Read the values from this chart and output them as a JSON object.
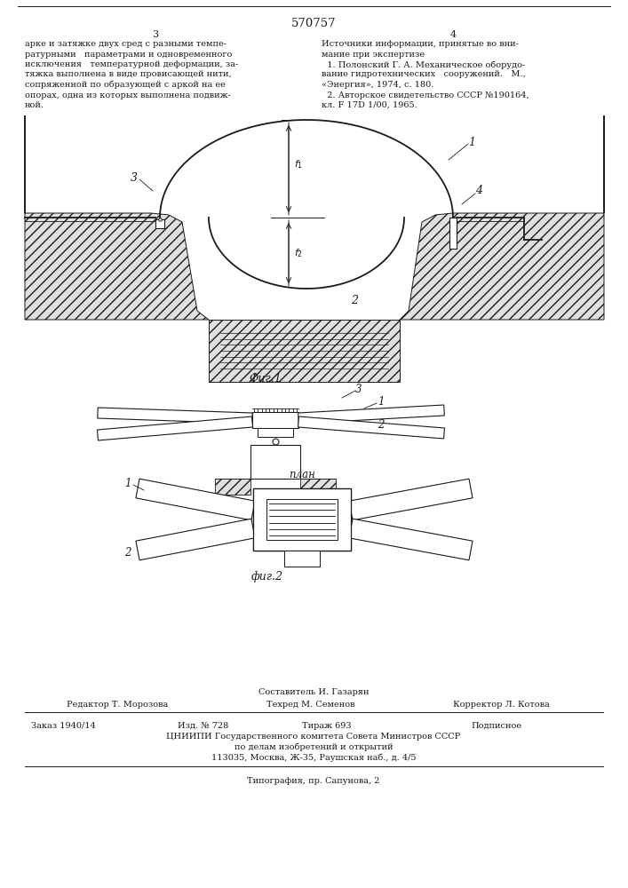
{
  "title": "570757",
  "page_numbers": [
    "3",
    "4"
  ],
  "fig1_label": "Фиг.1",
  "fig2_label": "фиг.2",
  "plan_label": "план",
  "bg_color": "#ffffff",
  "line_color": "#1a1a1a",
  "left_col_text": [
    "арке и затяжке двух сред с разными темпе-",
    "ратурными   параметрами и одновременного",
    "исключения   температурной деформации, за-",
    "тяжка выполнена в виде провисающей нити,",
    "сопряженной по образующей с аркой на ее",
    "опорах, одна из которых выполнена подвиж-",
    "ной."
  ],
  "right_col_text": [
    "Источники информации, принятые во вни-",
    "мание при экспертизе",
    "  1. Полонский Г. А. Механическое оборудо-",
    "вание гидротехнических   сооружений.   М.,",
    "«Энергия», 1974, с. 180.",
    "  2. Авторское свидетельство СССР №190164,",
    "кл. F 17D 1/00, 1965."
  ],
  "footer_texts": {
    "compiler": "Составитель И. Газарян",
    "editor": "Редактор Т. Морозова",
    "tech": "Техред М. Семенов",
    "corrector": "Корректор Л. Котова",
    "order": "Заказ 1940/14",
    "izd": "Изд. № 728",
    "tirazh": "Тираж 693",
    "podpisnoe": "Подписное",
    "tsniipi": "ЦНИИПИ Государственного комитета Совета Министров СССР",
    "po_delam": "по делам изобретений и открытий",
    "address": "113035, Москва, Ж-35, Раушская наб., д. 4/5",
    "tipografia": "Типография, пр. Сапунова, 2"
  }
}
